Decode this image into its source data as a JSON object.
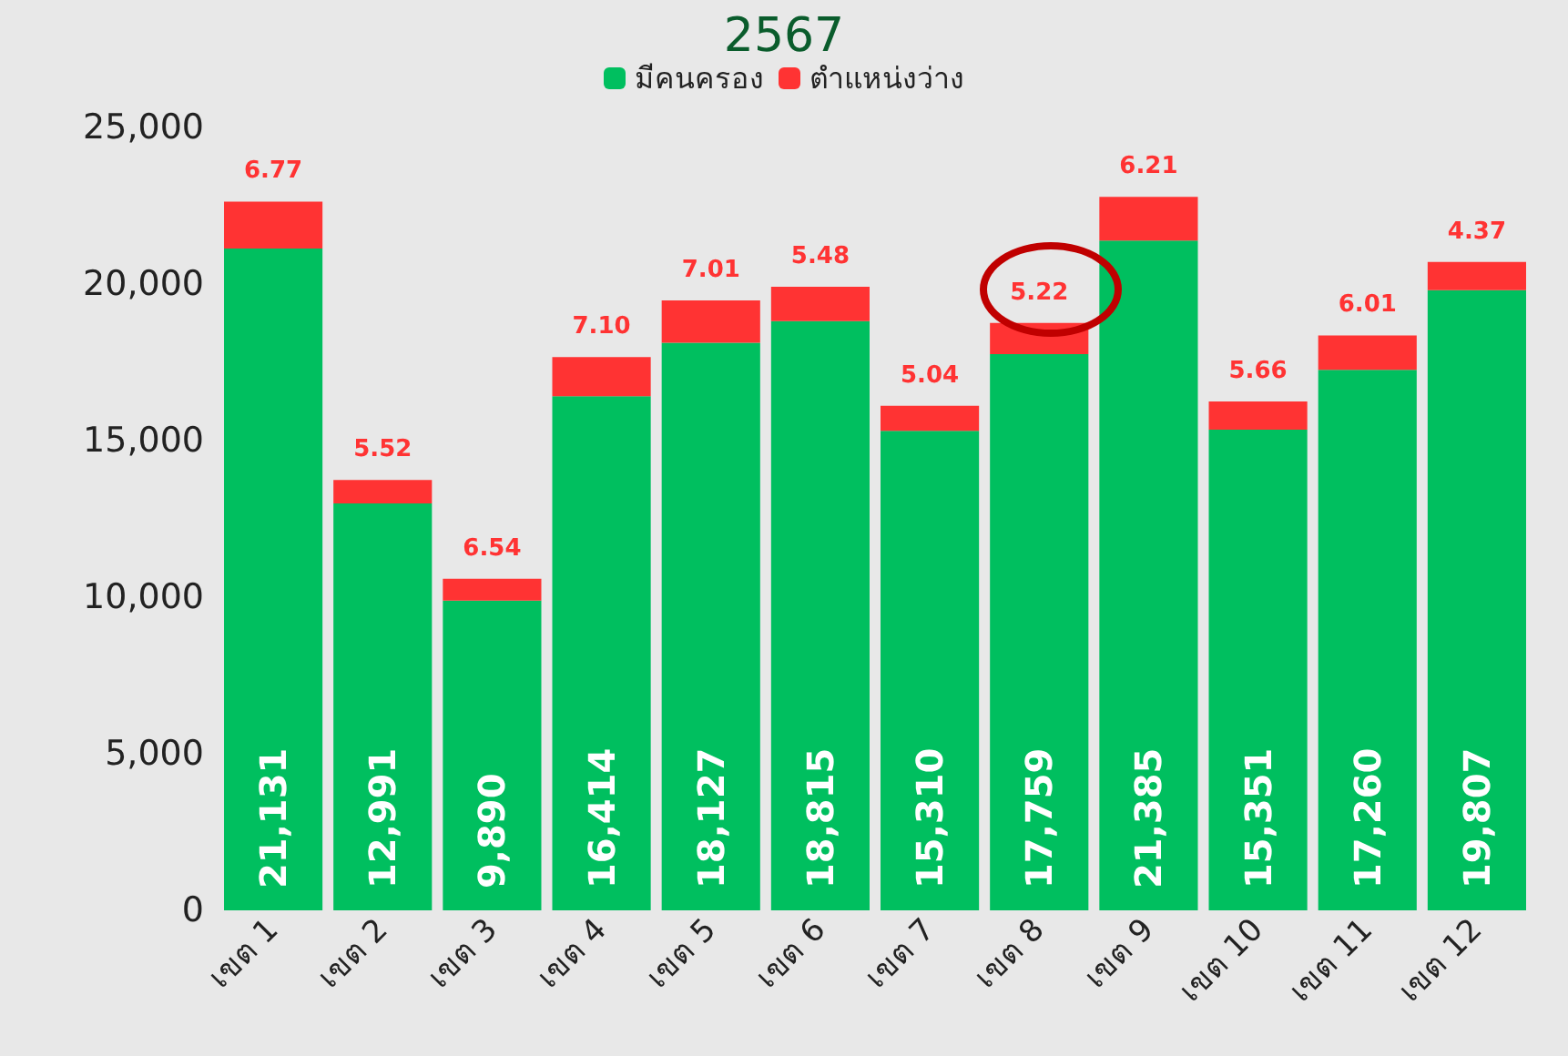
{
  "chart_data": {
    "type": "bar",
    "title": "2567",
    "stacked": true,
    "legend": "top",
    "grid": false,
    "categories": [
      "เขต 1",
      "เขต 2",
      "เขต 3",
      "เขต 4",
      "เขต 5",
      "เขต 6",
      "เขต 7",
      "เขต 8",
      "เขต 9",
      "เขต 10",
      "เขต 11",
      "เขต 12"
    ],
    "ylim": [
      0,
      25000
    ],
    "yticks": [
      {
        "value": 0,
        "label": "0"
      },
      {
        "value": 5000,
        "label": "5,000"
      },
      {
        "value": 10000,
        "label": "10,000"
      },
      {
        "value": 15000,
        "label": "15,000"
      },
      {
        "value": 20000,
        "label": "20,000"
      },
      {
        "value": 25000,
        "label": "25,000"
      }
    ],
    "series": [
      {
        "name": "มีคนครอง",
        "color": "#00bf5f",
        "values": [
          21131,
          12991,
          9890,
          16414,
          18127,
          18815,
          15310,
          17759,
          21385,
          15351,
          17260,
          19807
        ],
        "value_labels": [
          "21,131",
          "12,991",
          "9,890",
          "16,414",
          "18,127",
          "18,815",
          "15,310",
          "17,759",
          "21,385",
          "15,351",
          "17,260",
          "19,807"
        ]
      },
      {
        "name": "ตำแหน่งว่าง",
        "color": "#ff3333",
        "values": [
          1500,
          750,
          700,
          1250,
          1350,
          1100,
          800,
          1000,
          1400,
          900,
          1100,
          900
        ]
      }
    ],
    "annotations": [
      {
        "text": "6.77",
        "x": "เขต 1",
        "y": 22631
      },
      {
        "text": "5.52",
        "x": "เขต 2",
        "y": 13741
      },
      {
        "text": "6.54",
        "x": "เขต 3",
        "y": 10590
      },
      {
        "text": "7.10",
        "x": "เขต 4",
        "y": 17664
      },
      {
        "text": "7.01",
        "x": "เขต 5",
        "y": 19477
      },
      {
        "text": "5.48",
        "x": "เขต 6",
        "y": 19915
      },
      {
        "text": "5.04",
        "x": "เขต 7",
        "y": 16110
      },
      {
        "text": "5.22",
        "x": "เขต 8",
        "y": 18759
      },
      {
        "text": "6.21",
        "x": "เขต 9",
        "y": 22785
      },
      {
        "text": "5.66",
        "x": "เขต 10",
        "y": 16251
      },
      {
        "text": "6.01",
        "x": "เขต 11",
        "y": 18360
      },
      {
        "text": "4.37",
        "x": "เขต 12",
        "y": 20707
      }
    ]
  }
}
